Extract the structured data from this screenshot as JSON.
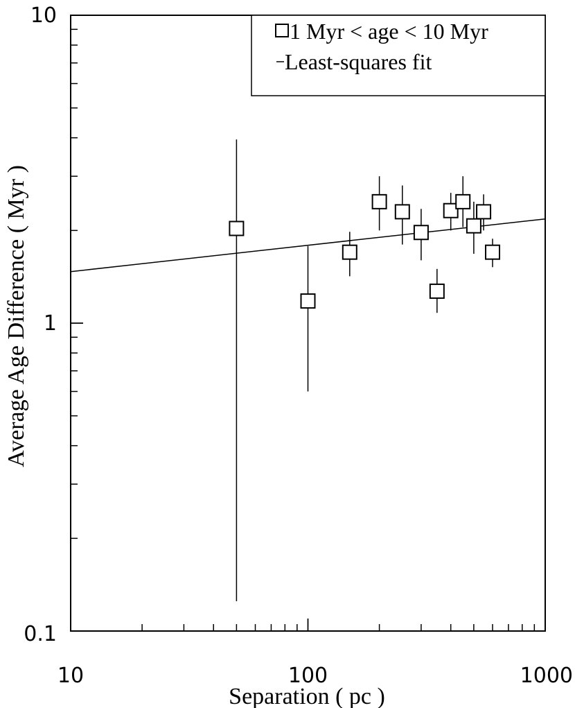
{
  "chart_data": {
    "type": "scatter",
    "xscale": "log",
    "yscale": "log",
    "xlabel": "Separation ( pc )",
    "ylabel": "Average Age Difference ( Myr )",
    "xlim": [
      10,
      1000
    ],
    "ylim": [
      0.1,
      10
    ],
    "x_tick_labels": [
      "10",
      "100",
      "1000"
    ],
    "y_tick_labels": [
      "0.1",
      "1",
      "10"
    ],
    "legend": {
      "placement": "top-right",
      "entries": [
        "1 Myr < age < 10 Myr",
        "Least-squares fit"
      ]
    },
    "series": [
      {
        "name": "1 Myr < age < 10 Myr",
        "marker": "square-open",
        "points": [
          {
            "x": 50,
            "y": 2.03,
            "ylow": 0.125,
            "yhigh": 3.95
          },
          {
            "x": 100,
            "y": 1.18,
            "ylow": 0.6,
            "yhigh": 1.78
          },
          {
            "x": 150,
            "y": 1.7,
            "ylow": 1.42,
            "yhigh": 1.98
          },
          {
            "x": 200,
            "y": 2.48,
            "ylow": 2.0,
            "yhigh": 3.0
          },
          {
            "x": 250,
            "y": 2.3,
            "ylow": 1.8,
            "yhigh": 2.8
          },
          {
            "x": 300,
            "y": 1.97,
            "ylow": 1.6,
            "yhigh": 2.35
          },
          {
            "x": 350,
            "y": 1.27,
            "ylow": 1.08,
            "yhigh": 1.5
          },
          {
            "x": 400,
            "y": 2.32,
            "ylow": 2.0,
            "yhigh": 2.65
          },
          {
            "x": 450,
            "y": 2.48,
            "ylow": 2.05,
            "yhigh": 3.0
          },
          {
            "x": 500,
            "y": 2.07,
            "ylow": 1.68,
            "yhigh": 2.48
          },
          {
            "x": 550,
            "y": 2.3,
            "ylow": 2.0,
            "yhigh": 2.62
          },
          {
            "x": 600,
            "y": 1.7,
            "ylow": 1.52,
            "yhigh": 1.88
          }
        ]
      },
      {
        "name": "Least-squares fit",
        "type": "line",
        "x": [
          10,
          1000
        ],
        "y": [
          1.47,
          2.18
        ]
      }
    ]
  }
}
